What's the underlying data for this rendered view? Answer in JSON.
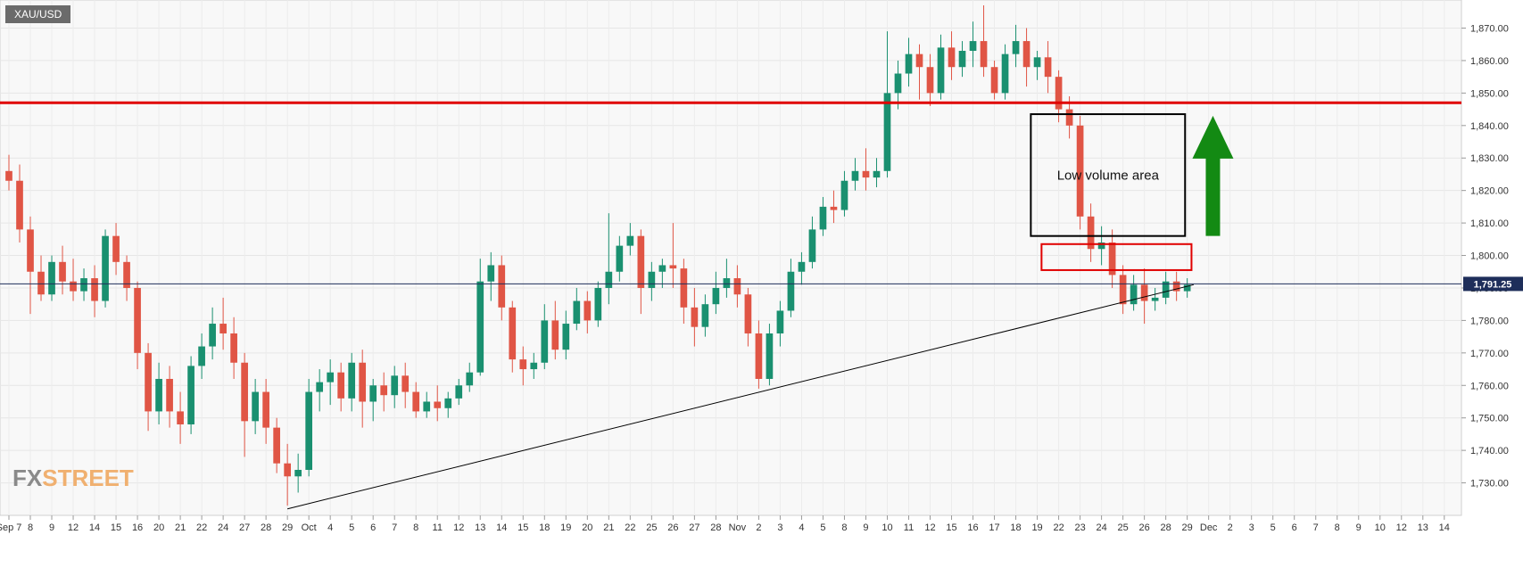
{
  "symbol": "XAU/USD",
  "brand": {
    "part1": "FX",
    "part2": "STREET"
  },
  "chart_data": {
    "type": "candlestick",
    "title": "",
    "ylim": [
      1720,
      1877
    ],
    "y_ticks": [
      "1,730.00",
      "1,740.00",
      "1,750.00",
      "1,760.00",
      "1,770.00",
      "1,780.00",
      "1,790.00",
      "1,800.00",
      "1,810.00",
      "1,820.00",
      "1,830.00",
      "1,840.00",
      "1,850.00",
      "1,860.00",
      "1,870.00"
    ],
    "y_tick_values": [
      1730,
      1740,
      1750,
      1760,
      1770,
      1780,
      1790,
      1800,
      1810,
      1820,
      1830,
      1840,
      1850,
      1860,
      1870
    ],
    "x_labels": [
      "Sep 7",
      "8",
      "9",
      "12",
      "14",
      "15",
      "16",
      "20",
      "21",
      "22",
      "24",
      "27",
      "28",
      "29",
      "Oct",
      "4",
      "5",
      "6",
      "7",
      "8",
      "11",
      "12",
      "13",
      "14",
      "15",
      "18",
      "19",
      "20",
      "21",
      "22",
      "25",
      "26",
      "27",
      "28",
      "Nov",
      "2",
      "3",
      "4",
      "5",
      "8",
      "9",
      "10",
      "11",
      "12",
      "15",
      "16",
      "17",
      "18",
      "19",
      "22",
      "23",
      "24",
      "25",
      "26",
      "28",
      "29",
      "Dec",
      "2",
      "3",
      "5",
      "6",
      "7",
      "8",
      "9",
      "10",
      "12",
      "13",
      "14"
    ],
    "current_price": "1,791.25",
    "current_value": 1791.25,
    "colors": {
      "up": "#1a9070",
      "down": "#e05545",
      "resistance": "#e00000",
      "arrow": "#138a13",
      "box": "#000000",
      "current_line": "#1e2e5a"
    },
    "resistance_level": 1847,
    "trendline": {
      "from": {
        "x_index": 13,
        "y": 1722
      },
      "to": {
        "x_index": 55.3,
        "y": 1791
      }
    },
    "annotations": [
      {
        "type": "box",
        "label": "Low volume area",
        "x_from": 47.7,
        "x_to": 54.9,
        "y_from": 1806,
        "y_to": 1843.5,
        "color": "#000000"
      },
      {
        "type": "box",
        "label": "",
        "x_from": 48.2,
        "x_to": 55.2,
        "y_from": 1795.5,
        "y_to": 1803.5,
        "color": "#e00000"
      },
      {
        "type": "arrow",
        "direction": "up",
        "x_index": 56.2,
        "y_from": 1806,
        "y_to": 1843,
        "color": "#138a13"
      }
    ],
    "candles": [
      {
        "x": 0,
        "o": 1826,
        "h": 1831,
        "c": 1823,
        "l": 1820
      },
      {
        "x": 0.5,
        "o": 1823,
        "h": 1828,
        "c": 1808,
        "l": 1804
      },
      {
        "x": 1,
        "o": 1808,
        "h": 1812,
        "c": 1795,
        "l": 1782
      },
      {
        "x": 1.5,
        "o": 1795,
        "h": 1800,
        "c": 1788,
        "l": 1786
      },
      {
        "x": 2,
        "o": 1788,
        "h": 1800,
        "c": 1798,
        "l": 1786
      },
      {
        "x": 2.5,
        "o": 1798,
        "h": 1803,
        "c": 1792,
        "l": 1788
      },
      {
        "x": 3,
        "o": 1792,
        "h": 1799,
        "c": 1789,
        "l": 1786
      },
      {
        "x": 3.5,
        "o": 1789,
        "h": 1796,
        "c": 1793,
        "l": 1786
      },
      {
        "x": 4,
        "o": 1793,
        "h": 1797,
        "c": 1786,
        "l": 1781
      },
      {
        "x": 4.5,
        "o": 1786,
        "h": 1808,
        "c": 1806,
        "l": 1784
      },
      {
        "x": 5,
        "o": 1806,
        "h": 1810,
        "c": 1798,
        "l": 1794
      },
      {
        "x": 5.5,
        "o": 1798,
        "h": 1800,
        "c": 1790,
        "l": 1786
      },
      {
        "x": 6,
        "o": 1790,
        "h": 1792,
        "c": 1770,
        "l": 1765
      },
      {
        "x": 6.5,
        "o": 1770,
        "h": 1773,
        "c": 1752,
        "l": 1746
      },
      {
        "x": 7,
        "o": 1752,
        "h": 1767,
        "c": 1762,
        "l": 1748
      },
      {
        "x": 7.5,
        "o": 1762,
        "h": 1766,
        "c": 1752,
        "l": 1747
      },
      {
        "x": 8,
        "o": 1752,
        "h": 1758,
        "c": 1748,
        "l": 1742
      },
      {
        "x": 8.5,
        "o": 1748,
        "h": 1769,
        "c": 1766,
        "l": 1745
      },
      {
        "x": 9,
        "o": 1766,
        "h": 1776,
        "c": 1772,
        "l": 1762
      },
      {
        "x": 9.5,
        "o": 1772,
        "h": 1784,
        "c": 1779,
        "l": 1768
      },
      {
        "x": 10,
        "o": 1779,
        "h": 1787,
        "c": 1776,
        "l": 1771
      },
      {
        "x": 10.5,
        "o": 1776,
        "h": 1781,
        "c": 1767,
        "l": 1762
      },
      {
        "x": 11,
        "o": 1767,
        "h": 1770,
        "c": 1749,
        "l": 1738
      },
      {
        "x": 11.5,
        "o": 1749,
        "h": 1762,
        "c": 1758,
        "l": 1745
      },
      {
        "x": 12,
        "o": 1758,
        "h": 1762,
        "c": 1747,
        "l": 1742
      },
      {
        "x": 12.5,
        "o": 1747,
        "h": 1750,
        "c": 1736,
        "l": 1733
      },
      {
        "x": 13,
        "o": 1736,
        "h": 1742,
        "c": 1732,
        "l": 1723
      },
      {
        "x": 13.5,
        "o": 1732,
        "h": 1739,
        "c": 1734,
        "l": 1727
      },
      {
        "x": 14,
        "o": 1734,
        "h": 1762,
        "c": 1758,
        "l": 1732
      },
      {
        "x": 14.5,
        "o": 1758,
        "h": 1765,
        "c": 1761,
        "l": 1752
      },
      {
        "x": 15,
        "o": 1761,
        "h": 1768,
        "c": 1764,
        "l": 1754
      },
      {
        "x": 15.5,
        "o": 1764,
        "h": 1767,
        "c": 1756,
        "l": 1752
      },
      {
        "x": 16,
        "o": 1756,
        "h": 1770,
        "c": 1767,
        "l": 1752
      },
      {
        "x": 16.5,
        "o": 1767,
        "h": 1771,
        "c": 1755,
        "l": 1747
      },
      {
        "x": 17,
        "o": 1755,
        "h": 1762,
        "c": 1760,
        "l": 1749
      },
      {
        "x": 17.5,
        "o": 1760,
        "h": 1764,
        "c": 1757,
        "l": 1752
      },
      {
        "x": 18,
        "o": 1757,
        "h": 1766,
        "c": 1763,
        "l": 1753
      },
      {
        "x": 18.5,
        "o": 1763,
        "h": 1767,
        "c": 1758,
        "l": 1753
      },
      {
        "x": 19,
        "o": 1758,
        "h": 1761,
        "c": 1752,
        "l": 1750
      },
      {
        "x": 19.5,
        "o": 1752,
        "h": 1758,
        "c": 1755,
        "l": 1750
      },
      {
        "x": 20,
        "o": 1755,
        "h": 1760,
        "c": 1753,
        "l": 1749
      },
      {
        "x": 20.5,
        "o": 1753,
        "h": 1758,
        "c": 1756,
        "l": 1750
      },
      {
        "x": 21,
        "o": 1756,
        "h": 1762,
        "c": 1760,
        "l": 1754
      },
      {
        "x": 21.5,
        "o": 1760,
        "h": 1767,
        "c": 1764,
        "l": 1758
      },
      {
        "x": 22,
        "o": 1764,
        "h": 1799,
        "c": 1792,
        "l": 1763
      },
      {
        "x": 22.5,
        "o": 1792,
        "h": 1801,
        "c": 1797,
        "l": 1786
      },
      {
        "x": 23,
        "o": 1797,
        "h": 1800,
        "c": 1784,
        "l": 1780
      },
      {
        "x": 23.5,
        "o": 1784,
        "h": 1786,
        "c": 1768,
        "l": 1764
      },
      {
        "x": 24,
        "o": 1768,
        "h": 1772,
        "c": 1765,
        "l": 1760
      },
      {
        "x": 24.5,
        "o": 1765,
        "h": 1770,
        "c": 1767,
        "l": 1762
      },
      {
        "x": 25,
        "o": 1767,
        "h": 1785,
        "c": 1780,
        "l": 1765
      },
      {
        "x": 25.5,
        "o": 1780,
        "h": 1786,
        "c": 1771,
        "l": 1768
      },
      {
        "x": 26,
        "o": 1771,
        "h": 1783,
        "c": 1779,
        "l": 1768
      },
      {
        "x": 26.5,
        "o": 1779,
        "h": 1790,
        "c": 1786,
        "l": 1777
      },
      {
        "x": 27,
        "o": 1786,
        "h": 1789,
        "c": 1780,
        "l": 1776
      },
      {
        "x": 27.5,
        "o": 1780,
        "h": 1792,
        "c": 1790,
        "l": 1778
      },
      {
        "x": 28,
        "o": 1790,
        "h": 1813,
        "c": 1795,
        "l": 1785
      },
      {
        "x": 28.5,
        "o": 1795,
        "h": 1806,
        "c": 1803,
        "l": 1792
      },
      {
        "x": 29,
        "o": 1803,
        "h": 1810,
        "c": 1806,
        "l": 1800
      },
      {
        "x": 29.5,
        "o": 1806,
        "h": 1808,
        "c": 1790,
        "l": 1782
      },
      {
        "x": 30,
        "o": 1790,
        "h": 1798,
        "c": 1795,
        "l": 1786
      },
      {
        "x": 30.5,
        "o": 1795,
        "h": 1799,
        "c": 1797,
        "l": 1790
      },
      {
        "x": 31,
        "o": 1797,
        "h": 1810,
        "c": 1796,
        "l": 1790
      },
      {
        "x": 31.5,
        "o": 1796,
        "h": 1799,
        "c": 1784,
        "l": 1779
      },
      {
        "x": 32,
        "o": 1784,
        "h": 1790,
        "c": 1778,
        "l": 1772
      },
      {
        "x": 32.5,
        "o": 1778,
        "h": 1788,
        "c": 1785,
        "l": 1775
      },
      {
        "x": 33,
        "o": 1785,
        "h": 1795,
        "c": 1790,
        "l": 1782
      },
      {
        "x": 33.5,
        "o": 1790,
        "h": 1799,
        "c": 1793,
        "l": 1787
      },
      {
        "x": 34,
        "o": 1793,
        "h": 1797,
        "c": 1788,
        "l": 1784
      },
      {
        "x": 34.5,
        "o": 1788,
        "h": 1790,
        "c": 1776,
        "l": 1772
      },
      {
        "x": 35,
        "o": 1776,
        "h": 1780,
        "c": 1762,
        "l": 1759
      },
      {
        "x": 35.5,
        "o": 1762,
        "h": 1779,
        "c": 1776,
        "l": 1760
      },
      {
        "x": 36,
        "o": 1776,
        "h": 1786,
        "c": 1783,
        "l": 1772
      },
      {
        "x": 36.5,
        "o": 1783,
        "h": 1799,
        "c": 1795,
        "l": 1781
      },
      {
        "x": 37,
        "o": 1795,
        "h": 1801,
        "c": 1798,
        "l": 1791
      },
      {
        "x": 37.5,
        "o": 1798,
        "h": 1812,
        "c": 1808,
        "l": 1796
      },
      {
        "x": 38,
        "o": 1808,
        "h": 1818,
        "c": 1815,
        "l": 1806
      },
      {
        "x": 38.5,
        "o": 1815,
        "h": 1820,
        "c": 1814,
        "l": 1810
      },
      {
        "x": 39,
        "o": 1814,
        "h": 1826,
        "c": 1823,
        "l": 1812
      },
      {
        "x": 39.5,
        "o": 1823,
        "h": 1830,
        "c": 1826,
        "l": 1820
      },
      {
        "x": 40,
        "o": 1826,
        "h": 1833,
        "c": 1824,
        "l": 1820
      },
      {
        "x": 40.5,
        "o": 1824,
        "h": 1830,
        "c": 1826,
        "l": 1821
      },
      {
        "x": 41,
        "o": 1826,
        "h": 1869,
        "c": 1850,
        "l": 1824
      },
      {
        "x": 41.5,
        "o": 1850,
        "h": 1860,
        "c": 1856,
        "l": 1845
      },
      {
        "x": 42,
        "o": 1856,
        "h": 1867,
        "c": 1862,
        "l": 1852
      },
      {
        "x": 42.5,
        "o": 1862,
        "h": 1865,
        "c": 1858,
        "l": 1848
      },
      {
        "x": 43,
        "o": 1858,
        "h": 1862,
        "c": 1850,
        "l": 1846
      },
      {
        "x": 43.5,
        "o": 1850,
        "h": 1868,
        "c": 1864,
        "l": 1848
      },
      {
        "x": 44,
        "o": 1864,
        "h": 1869,
        "c": 1858,
        "l": 1854
      },
      {
        "x": 44.5,
        "o": 1858,
        "h": 1866,
        "c": 1863,
        "l": 1855
      },
      {
        "x": 45,
        "o": 1863,
        "h": 1872,
        "c": 1866,
        "l": 1858
      },
      {
        "x": 45.5,
        "o": 1866,
        "h": 1877,
        "c": 1858,
        "l": 1855
      },
      {
        "x": 46,
        "o": 1858,
        "h": 1860,
        "c": 1850,
        "l": 1848
      },
      {
        "x": 46.5,
        "o": 1850,
        "h": 1865,
        "c": 1862,
        "l": 1848
      },
      {
        "x": 47,
        "o": 1862,
        "h": 1871,
        "c": 1866,
        "l": 1858
      },
      {
        "x": 47.5,
        "o": 1866,
        "h": 1870,
        "c": 1858,
        "l": 1852
      },
      {
        "x": 48,
        "o": 1858,
        "h": 1863,
        "c": 1861,
        "l": 1854
      },
      {
        "x": 48.5,
        "o": 1861,
        "h": 1866,
        "c": 1855,
        "l": 1850
      },
      {
        "x": 49,
        "o": 1855,
        "h": 1857,
        "c": 1845,
        "l": 1841
      },
      {
        "x": 49.5,
        "o": 1845,
        "h": 1849,
        "c": 1840,
        "l": 1836
      },
      {
        "x": 50,
        "o": 1840,
        "h": 1843,
        "c": 1812,
        "l": 1808
      },
      {
        "x": 50.5,
        "o": 1812,
        "h": 1816,
        "c": 1802,
        "l": 1798
      },
      {
        "x": 51,
        "o": 1802,
        "h": 1809,
        "c": 1804,
        "l": 1797
      },
      {
        "x": 51.5,
        "o": 1804,
        "h": 1808,
        "c": 1794,
        "l": 1790
      },
      {
        "x": 52,
        "o": 1794,
        "h": 1797,
        "c": 1785,
        "l": 1782
      },
      {
        "x": 52.5,
        "o": 1785,
        "h": 1794,
        "c": 1791,
        "l": 1783
      },
      {
        "x": 53,
        "o": 1791,
        "h": 1796,
        "c": 1786,
        "l": 1779
      },
      {
        "x": 53.5,
        "o": 1786,
        "h": 1790,
        "c": 1787,
        "l": 1783
      },
      {
        "x": 54,
        "o": 1787,
        "h": 1795,
        "c": 1792,
        "l": 1785
      },
      {
        "x": 54.5,
        "o": 1792,
        "h": 1795,
        "c": 1789,
        "l": 1786
      },
      {
        "x": 55,
        "o": 1789,
        "h": 1793,
        "c": 1791,
        "l": 1787
      }
    ]
  }
}
